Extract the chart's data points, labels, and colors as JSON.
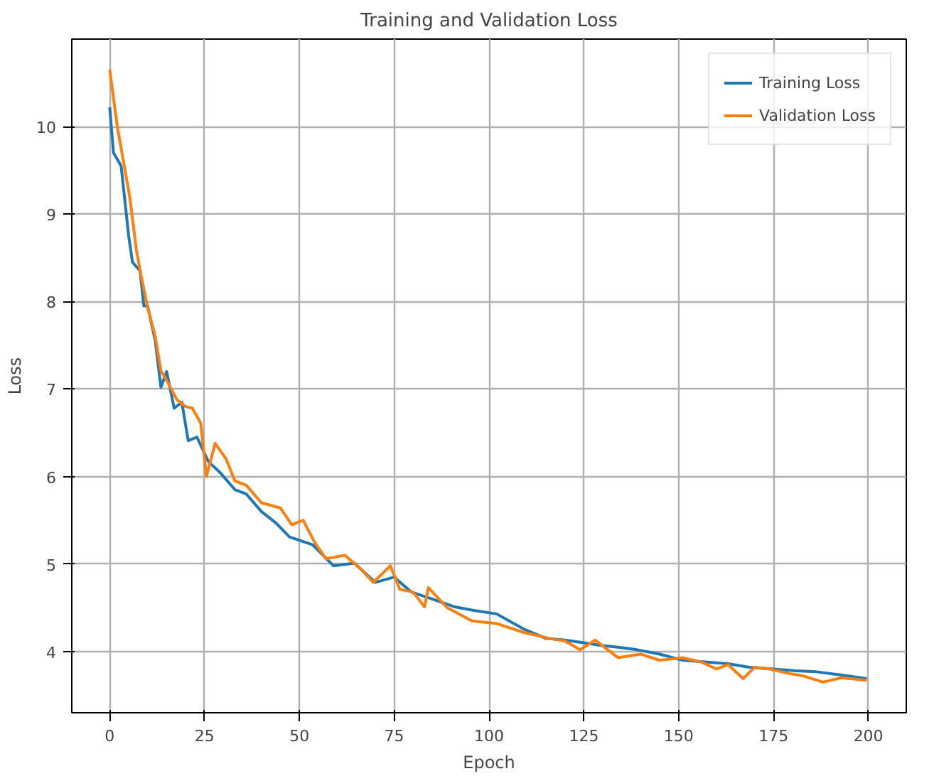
{
  "chart_data": {
    "type": "line",
    "title": "Training and Validation Loss",
    "xlabel": "Epoch",
    "ylabel": "Loss",
    "xlim": [
      -10,
      210
    ],
    "ylim": [
      3.3,
      11.0
    ],
    "xticks": [
      0,
      25,
      50,
      75,
      100,
      125,
      150,
      175,
      200
    ],
    "yticks": [
      4,
      5,
      6,
      7,
      8,
      9,
      10
    ],
    "grid": true,
    "legend": "top right",
    "line_style": "solid",
    "marker": "none",
    "series": [
      {
        "name": "Training Loss",
        "color": "#1f77b4",
        "x": [
          0,
          1,
          3,
          5,
          6,
          8,
          9,
          10,
          12,
          13.5,
          15,
          17,
          19,
          20.7,
          23,
          26,
          29,
          33,
          36,
          40,
          43.8,
          47.4,
          53.5,
          59,
          64.5,
          70,
          75,
          79.5,
          85,
          91,
          96,
          102,
          109,
          115,
          120,
          125,
          129.5,
          134,
          139,
          145,
          151,
          157,
          163,
          168.6,
          175,
          181,
          186,
          193,
          199.6
        ],
        "values": [
          10.22,
          9.7,
          9.55,
          8.75,
          8.45,
          8.35,
          7.95,
          7.95,
          7.55,
          7.02,
          7.2,
          6.78,
          6.85,
          6.41,
          6.45,
          6.17,
          6.05,
          5.85,
          5.8,
          5.6,
          5.47,
          5.31,
          5.22,
          4.98,
          5.01,
          4.79,
          4.85,
          4.68,
          4.6,
          4.51,
          4.47,
          4.43,
          4.26,
          4.15,
          4.13,
          4.1,
          4.07,
          4.05,
          4.02,
          3.97,
          3.9,
          3.88,
          3.86,
          3.82,
          3.8,
          3.78,
          3.77,
          3.73,
          3.69
        ]
      },
      {
        "name": "Validation Loss",
        "color": "#ff7f0e",
        "x": [
          0,
          2,
          5.3,
          7,
          8.2,
          10,
          12,
          13.5,
          15,
          17.7,
          20,
          21.8,
          24,
          25.5,
          27.8,
          30.7,
          33,
          36,
          40,
          45,
          48,
          51,
          54,
          57,
          62,
          66,
          69.5,
          74,
          76.5,
          80,
          83,
          84,
          89,
          95.5,
          102,
          109,
          116,
          120,
          124,
          128,
          134,
          140,
          145,
          151,
          156,
          160,
          163,
          167,
          170,
          174,
          179,
          183,
          188,
          193,
          199.6
        ],
        "values": [
          10.65,
          10.0,
          9.19,
          8.6,
          8.31,
          7.93,
          7.6,
          7.21,
          7.1,
          6.88,
          6.8,
          6.78,
          6.61,
          6.0,
          6.38,
          6.2,
          5.95,
          5.9,
          5.7,
          5.64,
          5.45,
          5.5,
          5.25,
          5.06,
          5.1,
          4.95,
          4.79,
          4.98,
          4.71,
          4.68,
          4.51,
          4.73,
          4.5,
          4.35,
          4.32,
          4.22,
          4.15,
          4.12,
          4.02,
          4.13,
          3.93,
          3.97,
          3.9,
          3.93,
          3.88,
          3.8,
          3.85,
          3.69,
          3.82,
          3.8,
          3.75,
          3.72,
          3.65,
          3.7,
          3.67
        ]
      }
    ]
  }
}
